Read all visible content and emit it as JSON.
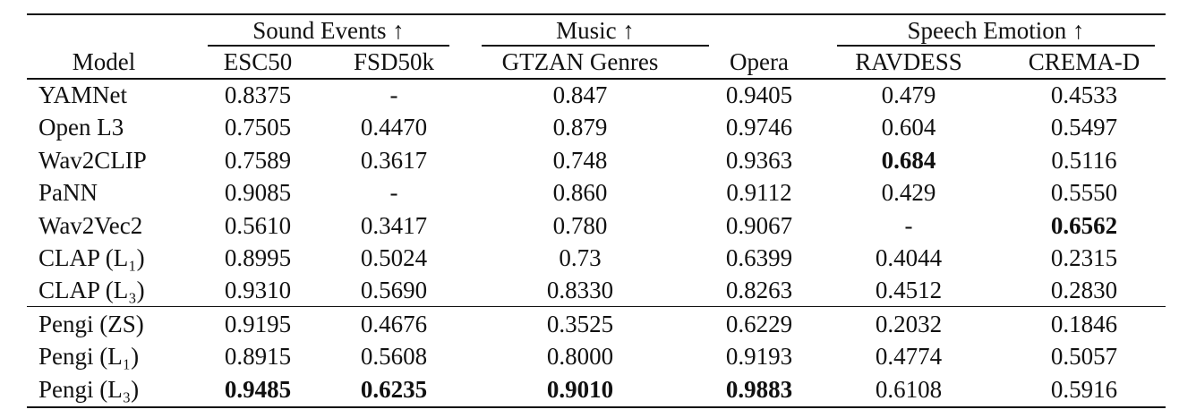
{
  "table": {
    "group_headers": [
      "Sound Events ↑",
      "Music ↑",
      "Speech Emotion ↑"
    ],
    "columns": [
      "Model",
      "ESC50",
      "FSD50k",
      "GTZAN Genres",
      "Opera",
      "RAVDESS",
      "CREMA-D"
    ],
    "sections": [
      [
        [
          "YAMNet",
          "0.8375",
          "-",
          "0.847",
          "0.9405",
          "0.479",
          "0.4533"
        ],
        [
          "Open L3",
          "0.7505",
          "0.4470",
          "0.879",
          "0.9746",
          "0.604",
          "0.5497"
        ],
        [
          "Wav2CLIP",
          "0.7589",
          "0.3617",
          "0.748",
          "0.9363",
          {
            "text": "0.684",
            "bold": true
          },
          "0.5116"
        ],
        [
          "PaNN",
          "0.9085",
          "-",
          "0.860",
          "0.9112",
          "0.429",
          "0.5550"
        ],
        [
          "Wav2Vec2",
          "0.5610",
          "0.3417",
          "0.780",
          "0.9067",
          "-",
          {
            "text": "0.6562",
            "bold": true
          }
        ],
        [
          "CLAP (L₁)",
          "0.8995",
          "0.5024",
          "0.73",
          "0.6399",
          "0.4044",
          "0.2315"
        ],
        [
          "CLAP (L₃)",
          "0.9310",
          "0.5690",
          "0.8330",
          "0.8263",
          "0.4512",
          "0.2830"
        ]
      ],
      [
        [
          "Pengi (ZS)",
          "0.9195",
          "0.4676",
          "0.3525",
          "0.6229",
          "0.2032",
          "0.1846"
        ],
        [
          "Pengi (L₁)",
          "0.8915",
          "0.5608",
          "0.8000",
          "0.9193",
          "0.4774",
          "0.5057"
        ],
        [
          "Pengi (L₃)",
          {
            "text": "0.9485",
            "bold": true
          },
          {
            "text": "0.6235",
            "bold": true
          },
          {
            "text": "0.9010",
            "bold": true
          },
          {
            "text": "0.9883",
            "bold": true
          },
          "0.6108",
          "0.5916"
        ]
      ]
    ]
  }
}
